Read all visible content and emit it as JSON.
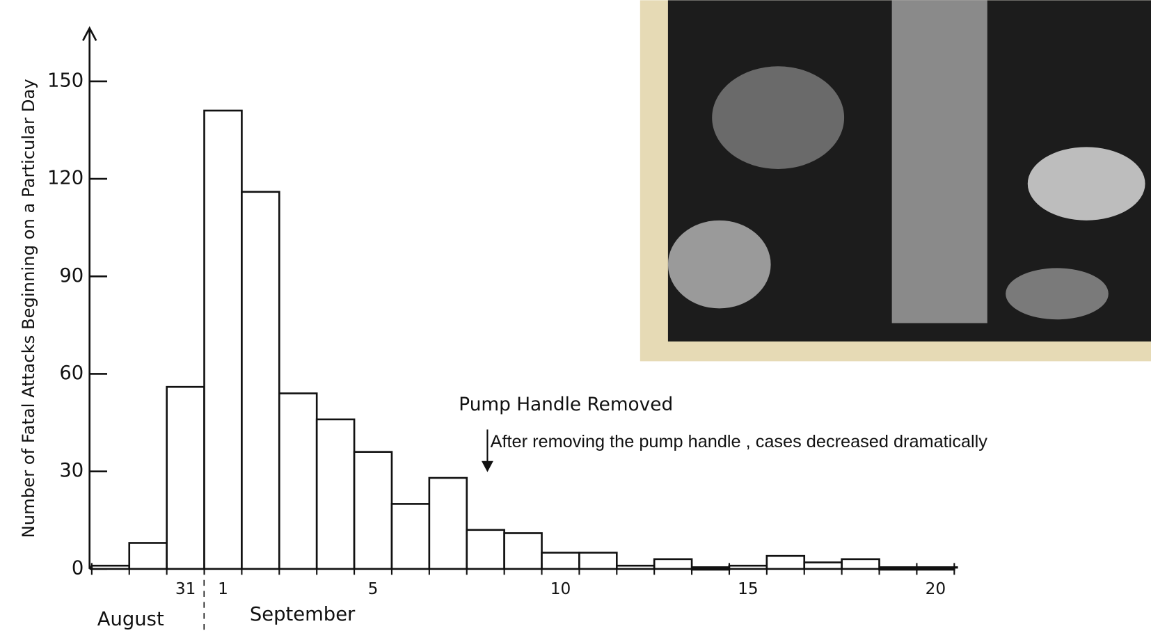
{
  "chart_data": {
    "type": "bar",
    "y_label": "Number of Fatal Attacks Beginning on a Particular Day",
    "categories": [
      null,
      null,
      "31",
      "1",
      null,
      null,
      null,
      "5",
      null,
      null,
      null,
      null,
      "10",
      null,
      null,
      null,
      null,
      "15",
      null,
      null,
      null,
      null,
      "20"
    ],
    "month_labels": [
      "August",
      "September"
    ],
    "values": [
      1,
      8,
      56,
      141,
      116,
      54,
      46,
      36,
      20,
      28,
      12,
      11,
      5,
      5,
      1,
      3,
      0,
      1,
      4,
      2,
      3,
      0,
      0
    ],
    "color": "#ffffff",
    "ylim": [
      0,
      165
    ],
    "yticks": [
      0,
      30,
      60,
      90,
      120,
      150
    ],
    "annotations": [
      "Pump Handle Removed",
      "After removing the pump handle , cases decreased dramatically"
    ]
  }
}
